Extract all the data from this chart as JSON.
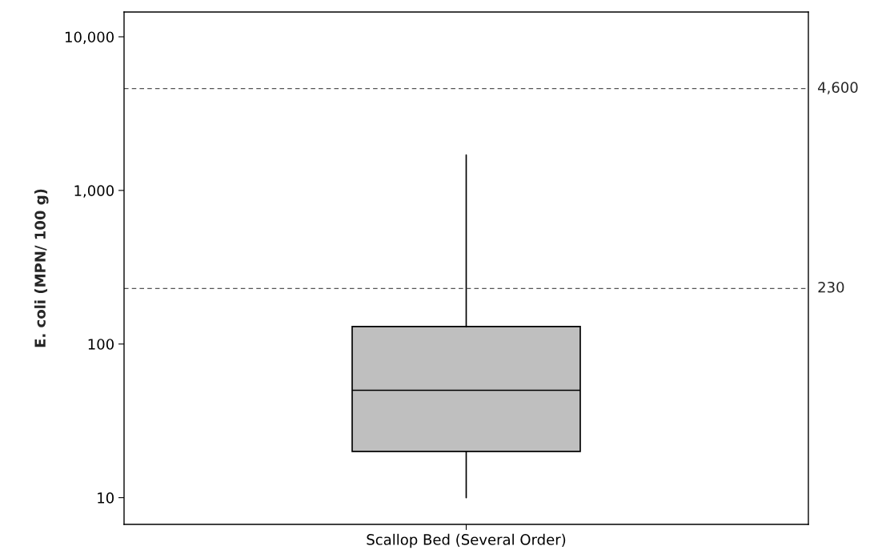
{
  "chart_data": {
    "type": "box",
    "ylabel": "E. coli (MPN/ 100 g)",
    "categories": [
      "Scallop Bed (Several Order)"
    ],
    "boxes": [
      {
        "low": 10,
        "q1": 20,
        "median": 50,
        "q3": 130,
        "high": 1700
      }
    ],
    "color": "#bfbfbf",
    "log": true,
    "ylim": [
      6.7,
      14500
    ],
    "yticks": [
      10,
      100,
      {
        "value": 1000,
        "label": "1,000"
      },
      {
        "value": 10000,
        "label": "10,000"
      }
    ],
    "ref_lines": [
      {
        "axis": "y",
        "value": 4600,
        "label": "4,600",
        "line_style": "dashed"
      },
      {
        "axis": "y",
        "value": 230,
        "label": "230",
        "line_style": "dashed"
      }
    ],
    "grid": false
  }
}
